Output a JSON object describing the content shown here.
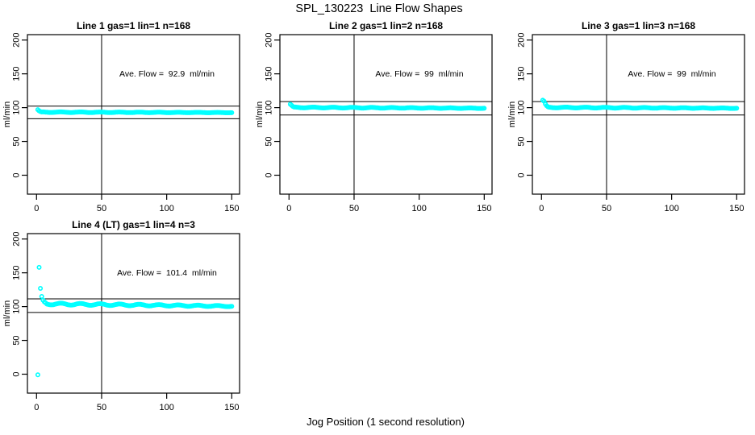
{
  "figure": {
    "title": "SPL_130223  Line Flow Shapes",
    "outer_xlabel": "Jog Position (1 second resolution)",
    "background_color": "#ffffff",
    "point_color": "#00ffff",
    "axis_color": "#000000"
  },
  "chart_data": [
    {
      "type": "scatter",
      "title": "Line 1 gas=1 lin=1 n=168",
      "annotation": "Ave. Flow =  92.9  ml/min",
      "ave_flow_ml_min": 92.9,
      "n_points": 168,
      "ylabel": "ml/min",
      "xticks": [
        0,
        50,
        100,
        150
      ],
      "yticks": [
        0,
        50,
        100,
        150,
        200
      ],
      "xlim": [
        -7,
        156
      ],
      "ylim": [
        -28,
        208
      ],
      "vline_x": 50,
      "hlines": [
        102.2,
        83.6
      ],
      "transient_points": [
        [
          1,
          97
        ],
        [
          2,
          95.2
        ],
        [
          3,
          94.2
        ],
        [
          4,
          93.6
        ]
      ],
      "steady_band": {
        "x_from": 5,
        "x_to": 150,
        "start": 93.3,
        "end": 92.6,
        "jitter": 0.45
      }
    },
    {
      "type": "scatter",
      "title": "Line 2 gas=1 lin=2 n=168",
      "annotation": "Ave. Flow =  99  ml/min",
      "ave_flow_ml_min": 99,
      "n_points": 168,
      "ylabel": "ml/min",
      "xticks": [
        0,
        50,
        100,
        150
      ],
      "yticks": [
        0,
        50,
        100,
        150,
        200
      ],
      "xlim": [
        -7,
        156
      ],
      "ylim": [
        -28,
        208
      ],
      "vline_x": 50,
      "hlines": [
        108.9,
        89.1
      ],
      "transient_points": [
        [
          1,
          105
        ],
        [
          2,
          103.3
        ],
        [
          3,
          101.8
        ],
        [
          4,
          100.8
        ]
      ],
      "steady_band": {
        "x_from": 5,
        "x_to": 150,
        "start": 100.3,
        "end": 99.1,
        "jitter": 0.6
      }
    },
    {
      "type": "scatter",
      "title": "Line 3 gas=1 lin=3 n=168",
      "annotation": "Ave. Flow =  99  ml/min",
      "ave_flow_ml_min": 99,
      "n_points": 168,
      "ylabel": "ml/min",
      "xticks": [
        0,
        50,
        100,
        150
      ],
      "yticks": [
        0,
        50,
        100,
        150,
        200
      ],
      "xlim": [
        -7,
        156
      ],
      "ylim": [
        -28,
        208
      ],
      "vline_x": 50,
      "hlines": [
        108.9,
        89.1
      ],
      "transient_points": [
        [
          1,
          111
        ],
        [
          2,
          109.5
        ],
        [
          3,
          105.5
        ],
        [
          4,
          102.8
        ],
        [
          5,
          101.2
        ]
      ],
      "steady_band": {
        "x_from": 6,
        "x_to": 150,
        "start": 100.3,
        "end": 99.1,
        "jitter": 0.6
      }
    },
    {
      "type": "scatter",
      "title": "Line 4 (LT) gas=1 lin=4 n=3",
      "annotation": "Ave. Flow =  101.4  ml/min",
      "ave_flow_ml_min": 101.4,
      "n_points": 3,
      "ylabel": "ml/min",
      "xticks": [
        0,
        50,
        100,
        150
      ],
      "yticks": [
        0,
        50,
        100,
        150,
        200
      ],
      "xlim": [
        -7,
        156
      ],
      "ylim": [
        -28,
        208
      ],
      "vline_x": 50,
      "hlines": [
        111.5,
        91.3
      ],
      "transient_points": [
        [
          1,
          -1
        ],
        [
          2,
          158
        ],
        [
          3,
          127
        ],
        [
          4,
          115
        ],
        [
          5,
          109.5
        ],
        [
          6,
          107
        ],
        [
          7,
          105.5
        ]
      ],
      "steady_band": {
        "x_from": 8,
        "x_to": 150,
        "start": 104,
        "end": 100.6,
        "jitter": 1.3
      }
    }
  ]
}
